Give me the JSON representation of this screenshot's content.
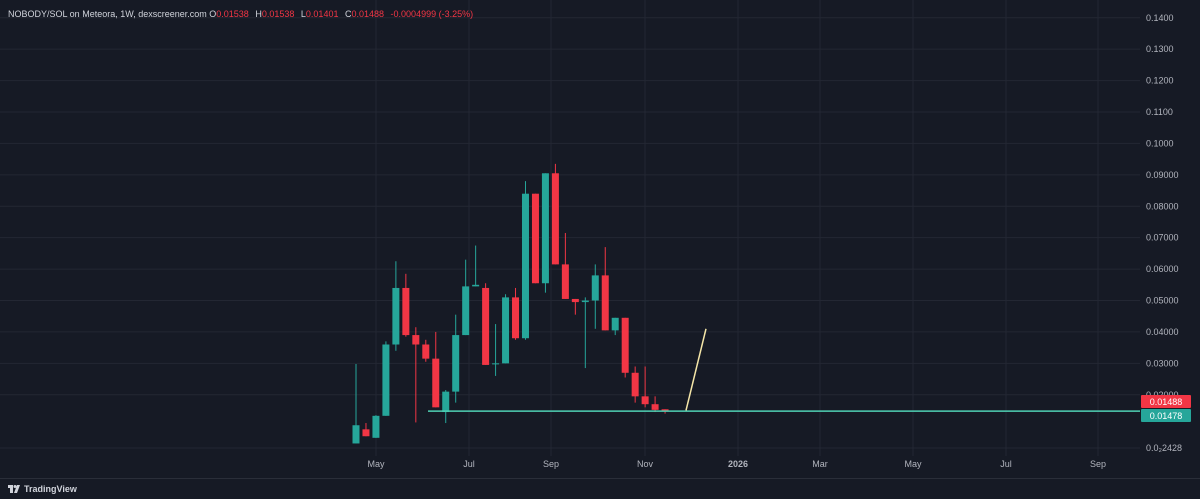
{
  "header": {
    "symbol": "NOBODY/SOL on Meteora, 1W, dexscreener.com",
    "o_label": "O",
    "o_value": "0.01538",
    "h_label": "H",
    "h_value": "0.01538",
    "l_label": "L",
    "l_value": "0.01401",
    "c_label": "C",
    "c_value": "0.01488",
    "change": "-0.0004999 (-3.25%)"
  },
  "footer": {
    "brand": "TradingView"
  },
  "colors": {
    "background": "#161a25",
    "grid": "#232733",
    "up": "#26a69a",
    "down": "#f23645",
    "support_line": "#4fd1b5",
    "trend_line": "#f5e6a8",
    "text": "#b2b5be"
  },
  "chart_data": {
    "type": "candlestick",
    "ylim": [
      0.00242,
      0.145
    ],
    "y_ticks": [
      "0.1400",
      "0.1300",
      "0.1200",
      "0.1100",
      "0.1000",
      "0.09000",
      "0.08000",
      "0.07000",
      "0.06000",
      "0.05000",
      "0.04000",
      "0.03000",
      "0.02000",
      "0.0₂2428"
    ],
    "x_tick_labels": [
      "May",
      "Jul",
      "Sep",
      "Nov",
      "2026",
      "Mar",
      "May",
      "Jul",
      "Sep"
    ],
    "price_labels": [
      {
        "value": 0.01488,
        "text": "0.01488",
        "color": "#f23645"
      },
      {
        "value": 0.01478,
        "text": "0.01478",
        "color": "#26a69a"
      }
    ],
    "support_level": 0.01478,
    "trend_line": {
      "from": [
        0.015,
        10
      ],
      "to": [
        0.041,
        12
      ]
    },
    "candles": [
      {
        "o": 0.0045,
        "h": 0.0298,
        "l": 0.0045,
        "c": 0.0103
      },
      {
        "o": 0.009,
        "h": 0.011,
        "l": 0.007,
        "c": 0.0068
      },
      {
        "o": 0.0063,
        "h": 0.0135,
        "l": 0.0063,
        "c": 0.0133
      },
      {
        "o": 0.0133,
        "h": 0.037,
        "l": 0.0133,
        "c": 0.036
      },
      {
        "o": 0.036,
        "h": 0.0625,
        "l": 0.034,
        "c": 0.054
      },
      {
        "o": 0.054,
        "h": 0.0585,
        "l": 0.0385,
        "c": 0.039
      },
      {
        "o": 0.039,
        "h": 0.0415,
        "l": 0.0112,
        "c": 0.036
      },
      {
        "o": 0.036,
        "h": 0.0375,
        "l": 0.0305,
        "c": 0.0315
      },
      {
        "o": 0.0315,
        "h": 0.04,
        "l": 0.0165,
        "c": 0.016
      },
      {
        "o": 0.0145,
        "h": 0.0215,
        "l": 0.011,
        "c": 0.021
      },
      {
        "o": 0.021,
        "h": 0.0455,
        "l": 0.0175,
        "c": 0.039
      },
      {
        "o": 0.039,
        "h": 0.063,
        "l": 0.039,
        "c": 0.0545
      },
      {
        "o": 0.0545,
        "h": 0.0675,
        "l": 0.055,
        "c": 0.055
      },
      {
        "o": 0.054,
        "h": 0.0555,
        "l": 0.0295,
        "c": 0.0295
      },
      {
        "o": 0.03,
        "h": 0.0425,
        "l": 0.026,
        "c": 0.03
      },
      {
        "o": 0.03,
        "h": 0.052,
        "l": 0.03,
        "c": 0.051
      },
      {
        "o": 0.051,
        "h": 0.054,
        "l": 0.0375,
        "c": 0.038
      },
      {
        "o": 0.038,
        "h": 0.088,
        "l": 0.0375,
        "c": 0.084
      },
      {
        "o": 0.084,
        "h": 0.0835,
        "l": 0.0555,
        "c": 0.0555
      },
      {
        "o": 0.0555,
        "h": 0.0905,
        "l": 0.0525,
        "c": 0.0905
      },
      {
        "o": 0.0905,
        "h": 0.0935,
        "l": 0.0615,
        "c": 0.0615
      },
      {
        "o": 0.0615,
        "h": 0.0715,
        "l": 0.0505,
        "c": 0.0505
      },
      {
        "o": 0.0505,
        "h": 0.0505,
        "l": 0.0455,
        "c": 0.0495
      },
      {
        "o": 0.0495,
        "h": 0.051,
        "l": 0.0285,
        "c": 0.05
      },
      {
        "o": 0.05,
        "h": 0.0615,
        "l": 0.041,
        "c": 0.058
      },
      {
        "o": 0.058,
        "h": 0.067,
        "l": 0.0405,
        "c": 0.0405
      },
      {
        "o": 0.0405,
        "h": 0.0445,
        "l": 0.039,
        "c": 0.0445
      },
      {
        "o": 0.0445,
        "h": 0.0445,
        "l": 0.0255,
        "c": 0.027
      },
      {
        "o": 0.027,
        "h": 0.029,
        "l": 0.0175,
        "c": 0.0195
      },
      {
        "o": 0.0195,
        "h": 0.029,
        "l": 0.016,
        "c": 0.017
      },
      {
        "o": 0.017,
        "h": 0.0195,
        "l": 0.0145,
        "c": 0.0152
      },
      {
        "o": 0.01538,
        "h": 0.01538,
        "l": 0.01401,
        "c": 0.01488
      }
    ]
  }
}
